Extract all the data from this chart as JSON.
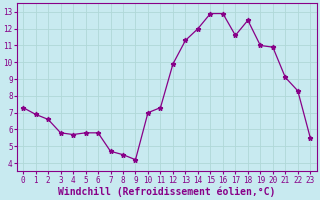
{
  "x": [
    0,
    1,
    2,
    3,
    4,
    5,
    6,
    7,
    8,
    9,
    10,
    11,
    12,
    13,
    14,
    15,
    16,
    17,
    18,
    19,
    20,
    21,
    22,
    23
  ],
  "y": [
    7.3,
    6.9,
    6.6,
    5.8,
    5.7,
    5.8,
    5.8,
    4.7,
    4.5,
    4.2,
    7.0,
    7.3,
    9.9,
    11.3,
    12.0,
    12.9,
    12.9,
    11.6,
    12.5,
    11.0,
    10.9,
    9.1,
    8.3,
    5.5
  ],
  "line_color": "#880088",
  "marker": "*",
  "markersize": 3.5,
  "linewidth": 0.9,
  "xlabel": "Windchill (Refroidissement éolien,°C)",
  "xlim": [
    -0.5,
    23.5
  ],
  "ylim": [
    3.5,
    13.5
  ],
  "yticks": [
    4,
    5,
    6,
    7,
    8,
    9,
    10,
    11,
    12,
    13
  ],
  "xticks": [
    0,
    1,
    2,
    3,
    4,
    5,
    6,
    7,
    8,
    9,
    10,
    11,
    12,
    13,
    14,
    15,
    16,
    17,
    18,
    19,
    20,
    21,
    22,
    23
  ],
  "background_color": "#c8eaf0",
  "grid_color": "#b0d8d8",
  "tick_color": "#880088",
  "axis_color": "#880088",
  "tick_fontsize": 5.5,
  "xlabel_fontsize": 7.0
}
